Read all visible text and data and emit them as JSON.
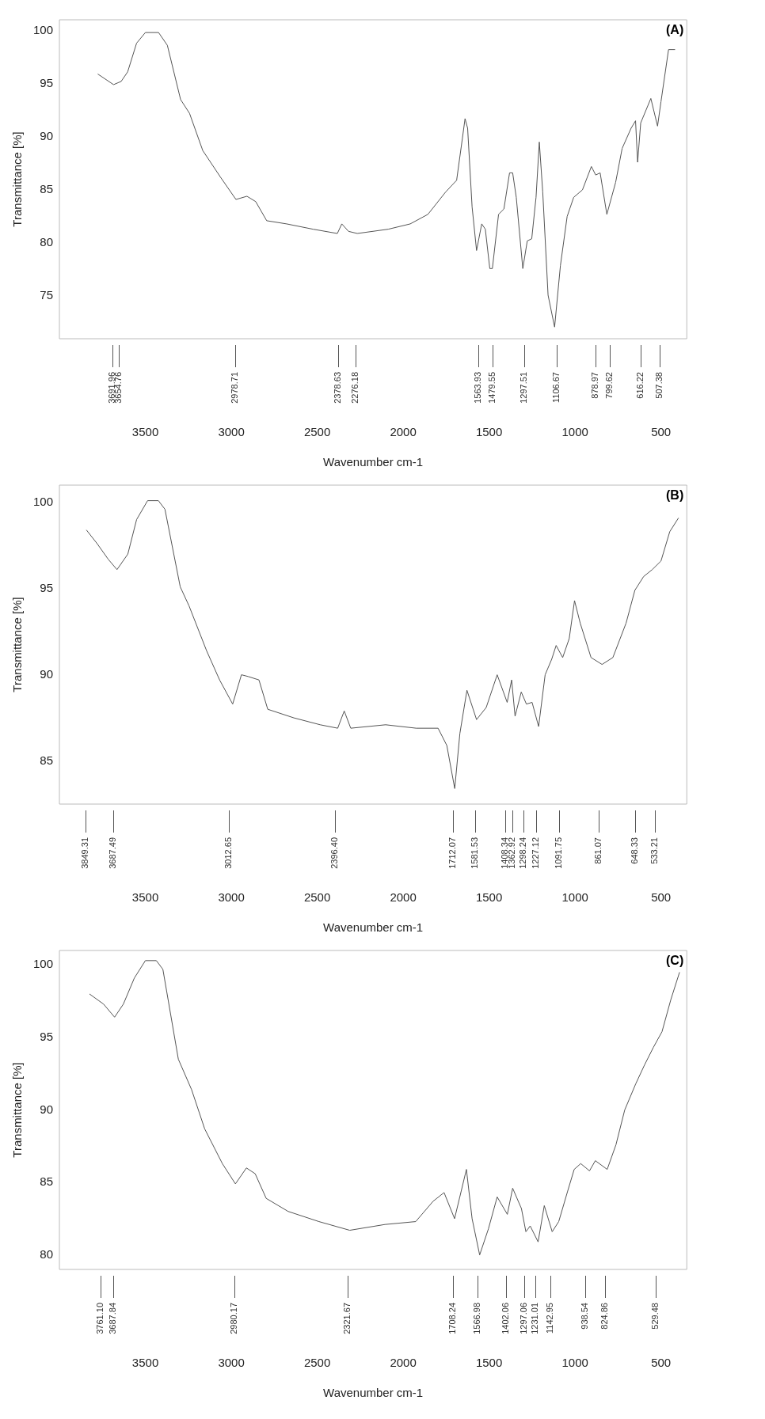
{
  "chart_data": [
    {
      "type": "line",
      "title": "(A)",
      "xlabel": "Wavenumber cm-1",
      "ylabel": "Transmittance [%]",
      "xlim": [
        4000,
        350
      ],
      "xticks": [
        3500,
        3000,
        2500,
        2000,
        1500,
        1000,
        500
      ],
      "ylim": [
        71,
        101
      ],
      "yticks": [
        75,
        80,
        85,
        90,
        95,
        100
      ],
      "series": [
        {
          "color": "#555555",
          "x": [
            3777,
            3685,
            3641,
            3603,
            3551,
            3500,
            3423,
            3372,
            3295,
            3243,
            3166,
            3063,
            2973,
            2909,
            2858,
            2794,
            2678,
            2524,
            2383,
            2357,
            2318,
            2267,
            2087,
            1959,
            1856,
            1753,
            1689,
            1655,
            1640,
            1625,
            1599,
            1573,
            1543,
            1522,
            1496,
            1481,
            1445,
            1414,
            1381,
            1363,
            1342,
            1304,
            1278,
            1252,
            1227,
            1208,
            1188,
            1157,
            1119,
            1085,
            1046,
            1008,
            957,
            905,
            880,
            854,
            815,
            764,
            726,
            674,
            648,
            636,
            618,
            559,
            520,
            500,
            456,
            418
          ],
          "values": [
            95.9,
            94.9,
            95.2,
            96.1,
            98.8,
            99.8,
            99.8,
            98.6,
            93.5,
            92.2,
            88.7,
            86.2,
            84.1,
            84.4,
            83.9,
            82.1,
            81.8,
            81.3,
            80.9,
            81.8,
            81.1,
            80.9,
            81.3,
            81.8,
            82.7,
            84.8,
            85.9,
            89.9,
            91.7,
            90.8,
            83.4,
            79.3,
            81.8,
            81.3,
            77.6,
            77.6,
            82.7,
            83.2,
            86.6,
            86.6,
            84.3,
            77.6,
            80.2,
            80.4,
            84.3,
            89.5,
            84.8,
            75.1,
            72.1,
            77.9,
            82.5,
            84.3,
            85.0,
            87.2,
            86.4,
            86.6,
            82.7,
            85.7,
            88.9,
            90.8,
            91.5,
            87.6,
            91.3,
            93.6,
            91.0,
            93.3,
            98.2,
            98.2
          ]
        }
      ],
      "annotations": [
        "3691.96",
        "3654.76",
        "2978.71",
        "2378.63",
        "2276.18",
        "1563.93",
        "1479.55",
        "1297.51",
        "1106.67",
        "878.97",
        "799.62",
        "616.22",
        "507.38"
      ]
    },
    {
      "type": "line",
      "title": "(B)",
      "xlabel": "Wavenumber cm-1",
      "ylabel": "Transmittance [%]",
      "xlim": [
        4000,
        350
      ],
      "xticks": [
        3500,
        3000,
        2500,
        2000,
        1500,
        1000,
        500
      ],
      "ylim": [
        82.5,
        101
      ],
      "yticks": [
        85,
        90,
        95,
        100
      ],
      "series": [
        {
          "color": "#555555",
          "x": [
            3843,
            3780,
            3716,
            3665,
            3602,
            3551,
            3487,
            3424,
            3386,
            3297,
            3246,
            3144,
            3068,
            2992,
            2941,
            2902,
            2839,
            2788,
            2636,
            2483,
            2381,
            2343,
            2305,
            2102,
            1924,
            1797,
            1746,
            1700,
            1670,
            1629,
            1573,
            1517,
            1453,
            1395,
            1369,
            1349,
            1313,
            1283,
            1250,
            1212,
            1174,
            1136,
            1110,
            1072,
            1034,
            1003,
            970,
            907,
            843,
            780,
            703,
            652,
            601,
            551,
            500,
            449,
            398
          ],
          "values": [
            98.4,
            97.6,
            96.7,
            96.1,
            97.0,
            99.0,
            100.1,
            100.1,
            99.6,
            95.1,
            94.0,
            91.4,
            89.7,
            88.3,
            90.0,
            89.9,
            89.7,
            88.0,
            87.5,
            87.1,
            86.9,
            87.9,
            86.9,
            87.1,
            86.9,
            86.9,
            85.9,
            83.4,
            86.6,
            89.1,
            87.4,
            88.1,
            90.0,
            88.4,
            89.7,
            87.6,
            89.0,
            88.3,
            88.4,
            87.0,
            90.0,
            90.9,
            91.7,
            91.0,
            92.1,
            94.3,
            93.0,
            91.0,
            90.6,
            91.0,
            93.0,
            94.9,
            95.7,
            96.1,
            96.6,
            98.3,
            99.1
          ]
        }
      ],
      "annotations": [
        "3849.31",
        "3687.49",
        "3012.65",
        "2396.40",
        "1712.07",
        "1581.53",
        "1408.34",
        "1362.92",
        "1298.24",
        "1227.12",
        "1091.75",
        "861.07",
        "648.33",
        "533.21"
      ]
    },
    {
      "type": "line",
      "title": "(C)",
      "xlabel": "Wavenumber cm-1",
      "ylabel": "Transmittance [%]",
      "xlim": [
        4000,
        350
      ],
      "xticks": [
        3500,
        3000,
        2500,
        2000,
        1500,
        1000,
        500
      ],
      "ylim": [
        79,
        101
      ],
      "yticks": [
        80,
        85,
        90,
        95,
        100
      ],
      "series": [
        {
          "color": "#555555",
          "x": [
            3825,
            3743,
            3679,
            3628,
            3564,
            3500,
            3436,
            3398,
            3308,
            3231,
            3155,
            3052,
            2976,
            2912,
            2861,
            2797,
            2669,
            2490,
            2311,
            2106,
            1927,
            1826,
            1762,
            1701,
            1632,
            1599,
            1555,
            1504,
            1453,
            1394,
            1363,
            1312,
            1286,
            1261,
            1215,
            1179,
            1133,
            1095,
            1043,
            1005,
            967,
            916,
            882,
            813,
            762,
            711,
            647,
            596,
            545,
            494,
            443,
            392
          ],
          "values": [
            98.0,
            97.3,
            96.4,
            97.3,
            99.1,
            100.3,
            100.3,
            99.7,
            93.5,
            91.4,
            88.7,
            86.3,
            84.9,
            86.0,
            85.6,
            83.9,
            83.0,
            82.3,
            81.7,
            82.1,
            82.3,
            83.7,
            84.3,
            82.5,
            85.9,
            82.5,
            80.0,
            81.8,
            84.0,
            82.8,
            84.6,
            83.2,
            81.6,
            82.0,
            80.9,
            83.4,
            81.6,
            82.3,
            84.4,
            85.9,
            86.3,
            85.8,
            86.5,
            85.9,
            87.6,
            90.0,
            91.8,
            93.1,
            94.3,
            95.4,
            97.6,
            99.5
          ]
        }
      ],
      "annotations": [
        "3761.10",
        "3687.84",
        "2980.17",
        "2321.67",
        "1708.24",
        "1566.98",
        "1402.06",
        "1297.06",
        "1231.01",
        "1142.95",
        "938.54",
        "824.86",
        "529.48"
      ]
    }
  ]
}
